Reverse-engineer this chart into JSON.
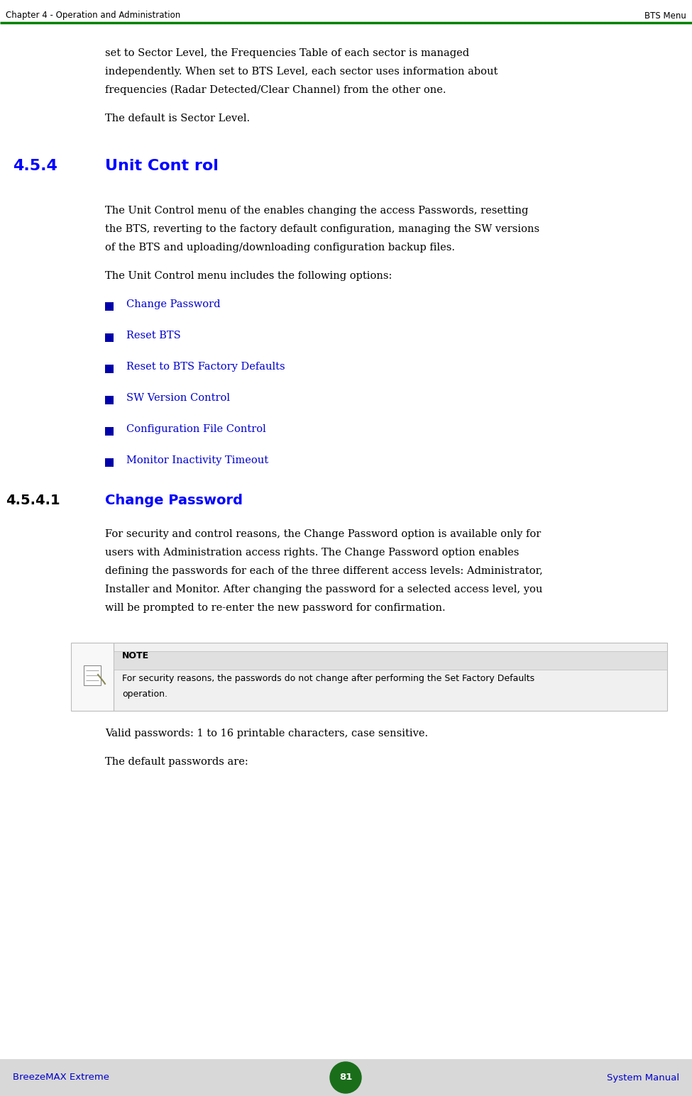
{
  "header_left": "Chapter 4 - Operation and Administration",
  "header_right": "BTS Menu",
  "header_line_color": "#008000",
  "footer_left": "BreezeMAX Extreme",
  "footer_center": "81",
  "footer_right": "System Manual",
  "footer_bg_color": "#d8d8d8",
  "footer_text_color": "#0000cc",
  "footer_circle_color": "#1a6e1a",
  "bg_color": "#ffffff",
  "body_text_color": "#000000",
  "heading_color": "#0000ff",
  "bullet_color": "#0000aa",
  "link_color": "#0000cc",
  "header_font_size": 8.5,
  "body_font_size": 10.5,
  "body_font_size_small": 9.0,
  "section_heading_fontsize": 16,
  "subsection_heading_fontsize": 14,
  "intro_paragraph": "set to Sector Level, the Frequencies Table of each sector is managed independently. When set to BTS Level, each sector uses information about frequencies (Radar Detected/Clear Channel) from the other one.",
  "default_line": "The default is Sector Level.",
  "section_num": "4.5.4",
  "section_title": "Unit Cont rol",
  "section_body1_lines": [
    "The Unit Control menu of the enables changing the access Passwords, resetting",
    "the BTS, reverting to the factory default configuration, managing the SW versions",
    "of the BTS and uploading/downloading configuration backup files."
  ],
  "section_body2": "The Unit Control menu includes the following options:",
  "bullet_items": [
    "Change Password",
    "Reset BTS",
    "Reset to BTS Factory Defaults",
    "SW Version Control",
    "Configuration File Control",
    "Monitor Inactivity Timeout"
  ],
  "subsection_num": "4.5.4.1",
  "subsection_title": "Change Password",
  "subsection_body_lines": [
    "For security and control reasons, the Change Password option is available only for",
    "users with Administration access rights. The Change Password option enables",
    "defining the passwords for each of the three different access levels: Administrator,",
    "Installer and Monitor. After changing the password for a selected access level, you",
    "will be prompted to re-enter the new password for confirmation."
  ],
  "note_label": "NOTE",
  "note_text_lines": [
    "For security reasons, the passwords do not change after performing the Set Factory Defaults",
    "operation."
  ],
  "valid_passwords_line": "Valid passwords: 1 to 16 printable characters, case sensitive.",
  "default_passwords_line": "The default passwords are:"
}
